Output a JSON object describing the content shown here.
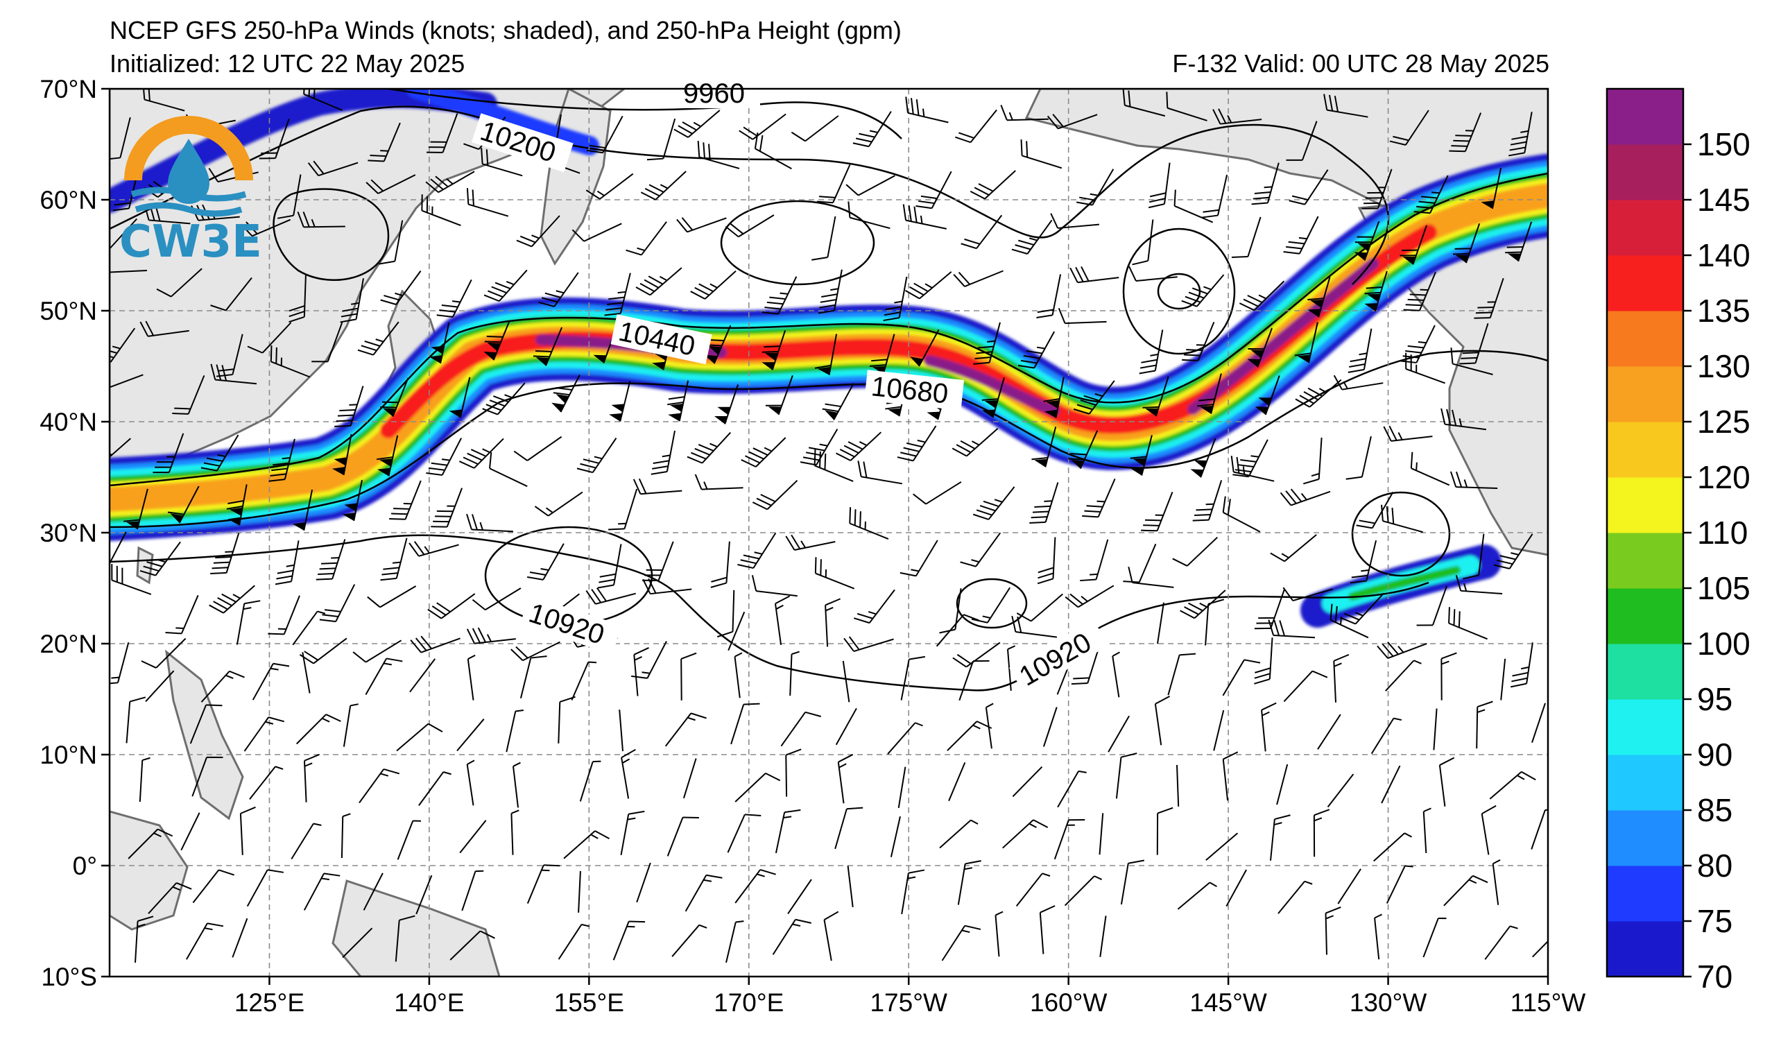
{
  "header": {
    "title": "NCEP GFS 250-hPa Winds (knots; shaded), and 250-hPa Height (gpm)",
    "initialized": "Initialized: 12 UTC 22 May 2025",
    "valid": "F-132  Valid: 00 UTC 28 May 2025"
  },
  "logo": {
    "text": "CW3E",
    "colors": {
      "ring": "#f39c1f",
      "drop": "#2a8fc1",
      "text": "#2a8fc1"
    }
  },
  "axes": {
    "lat_labels": [
      "70°N",
      "60°N",
      "50°N",
      "40°N",
      "30°N",
      "20°N",
      "10°N",
      "0°",
      "10°S"
    ],
    "lon_labels": [
      "125°E",
      "140°E",
      "155°E",
      "170°E",
      "175°W",
      "160°W",
      "145°W",
      "130°W",
      "115°W"
    ]
  },
  "contour_labels": [
    "9960",
    "10200",
    "10440",
    "10680",
    "10920",
    "10920"
  ],
  "colorbar": {
    "ticks": [
      "70",
      "75",
      "80",
      "85",
      "90",
      "95",
      "100",
      "105",
      "110",
      "120",
      "125",
      "130",
      "135",
      "140",
      "145",
      "150"
    ],
    "colors": [
      "#1a1acc",
      "#1f3bff",
      "#1f8cff",
      "#1fc8ff",
      "#1ff0f0",
      "#1ee0a0",
      "#1fbd1f",
      "#79cc1f",
      "#f4f41f",
      "#f8c81f",
      "#f8a01f",
      "#f87a1f",
      "#f81f1f",
      "#d81f3a",
      "#a81f5e",
      "#8a1f8a"
    ]
  },
  "colors": {
    "land": "#e6e6e6",
    "coast": "#6e6e6e",
    "grid": "#8a8a8a",
    "contour": "#000000"
  }
}
